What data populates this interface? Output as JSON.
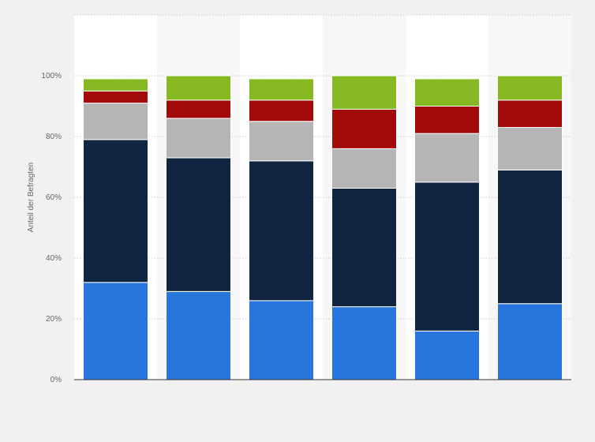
{
  "chart_data": {
    "type": "bar",
    "stacked": true,
    "categories": [
      "",
      "",
      "",
      "",
      "",
      ""
    ],
    "series": [
      {
        "color": "#2876dd",
        "values": [
          32,
          29,
          26,
          24,
          16,
          25
        ]
      },
      {
        "color": "#10253f",
        "values": [
          47,
          44,
          46,
          39,
          49,
          44
        ]
      },
      {
        "color": "#b5b5b5",
        "values": [
          12,
          13,
          13,
          13,
          16,
          14
        ]
      },
      {
        "color": "#a30b0b",
        "values": [
          4,
          6,
          7,
          13,
          9,
          9
        ]
      },
      {
        "color": "#86b821",
        "values": [
          4,
          8,
          7,
          11,
          9,
          8
        ]
      }
    ],
    "ylabel": "Anteil der Befragten",
    "ylim": [
      0,
      120
    ],
    "yticks": [
      0,
      20,
      40,
      60,
      80,
      100
    ],
    "ytick_labels": [
      "0%",
      "20%",
      "40%",
      "60%",
      "80%",
      "100%"
    ],
    "grid": true,
    "legend": "none"
  }
}
